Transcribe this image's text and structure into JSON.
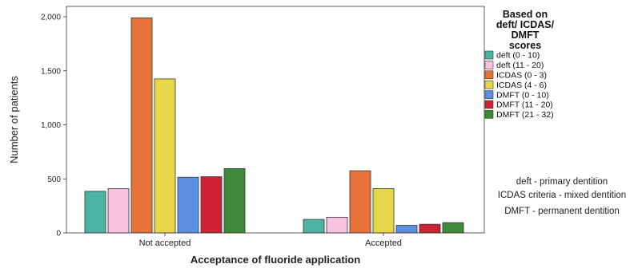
{
  "chart_data": {
    "type": "bar",
    "xlabel": "Acceptance of fluoride application",
    "ylabel": "Number of patients",
    "ylim": [
      0,
      2000
    ],
    "yticks": [
      "0",
      "500",
      "1,000",
      "1,500",
      "2,000"
    ],
    "ytick_values": [
      0,
      500,
      1000,
      1500,
      2000
    ],
    "categories": [
      "Not accepted",
      "Accepted"
    ],
    "series": [
      {
        "name": "deft  (0 - 10)",
        "color": "#4fb3a3",
        "values": [
          385,
          125
        ]
      },
      {
        "name": "deft  (11 - 20)",
        "color": "#f7c3e0",
        "values": [
          410,
          145
        ]
      },
      {
        "name": "ICDAS (0 - 3)",
        "color": "#e8733a",
        "values": [
          1990,
          575
        ]
      },
      {
        "name": "ICDAS (4 - 6)",
        "color": "#e5d64a",
        "values": [
          1425,
          410
        ]
      },
      {
        "name": "DMFT (0 - 10)",
        "color": "#5d8fe0",
        "values": [
          515,
          70
        ]
      },
      {
        "name": "DMFT (11 - 20)",
        "color": "#cc2233",
        "values": [
          520,
          80
        ]
      },
      {
        "name": "DMFT (21 - 32)",
        "color": "#3f8a3a",
        "values": [
          595,
          95
        ]
      }
    ],
    "legend": {
      "title_lines": [
        "Based on",
        "deft/ ICDAS/",
        "DMFT",
        "scores"
      ],
      "position": "right"
    },
    "grid": false
  },
  "notes": [
    "deft  - primary dentition",
    "ICDAS criteria - mixed dentition",
    "DMFT - permanent dentition"
  ]
}
